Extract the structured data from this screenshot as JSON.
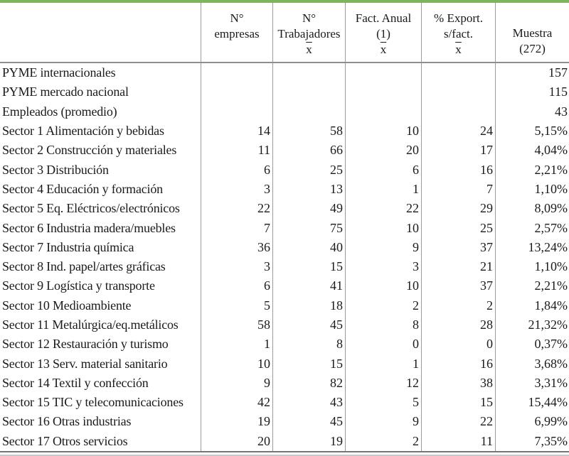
{
  "page": {
    "accent_green": "#7db45c",
    "column_rule_gray": "#9b9b9e",
    "header_rule_gray": "#8e8e90",
    "bottom_rule_gray": "#757577",
    "footer_rule_light": "#c8c8ca",
    "text_color": "#1a1a1c"
  },
  "table": {
    "mean_symbol": "x",
    "header": [
      {
        "lines": [
          "N°",
          "empresas"
        ],
        "mean": false
      },
      {
        "lines": [
          "N°",
          "Trabajadores"
        ],
        "mean": true
      },
      {
        "lines": [
          "Fact. Anual",
          "(1)"
        ],
        "mean": true
      },
      {
        "lines": [
          "% Export.",
          "s/fact."
        ],
        "mean": true
      },
      {
        "lines": [
          "Muestra",
          "(272)"
        ],
        "mean": false
      }
    ],
    "rows": [
      {
        "label": "PYME internacionales",
        "values": [
          "",
          "",
          "",
          "",
          "157"
        ]
      },
      {
        "label": "PYME mercado nacional",
        "values": [
          "",
          "",
          "",
          "",
          "115"
        ]
      },
      {
        "label": "Empleados (promedio)",
        "values": [
          "",
          "",
          "",
          "",
          "43"
        ]
      },
      {
        "label": "Sector 1 Alimentación y bebidas",
        "values": [
          "14",
          "58",
          "10",
          "24",
          "5,15%"
        ]
      },
      {
        "label": "Sector 2 Construcción y materiales",
        "values": [
          "11",
          "66",
          "20",
          "17",
          "4,04%"
        ]
      },
      {
        "label": "Sector 3 Distribución",
        "values": [
          "6",
          "25",
          "6",
          "16",
          "2,21%"
        ]
      },
      {
        "label": "Sector 4 Educación y formación",
        "values": [
          "3",
          "13",
          "1",
          "7",
          "1,10%"
        ]
      },
      {
        "label": "Sector 5 Eq. Eléctricos/electrónicos",
        "values": [
          "22",
          "49",
          "22",
          "29",
          "8,09%"
        ]
      },
      {
        "label": "Sector 6 Industria madera/muebles",
        "values": [
          "7",
          "75",
          "10",
          "25",
          "2,57%"
        ]
      },
      {
        "label": "Sector 7 Industria química",
        "values": [
          "36",
          "40",
          "9",
          "37",
          "13,24%"
        ]
      },
      {
        "label": "Sector 8 Ind. papel/artes gráficas",
        "values": [
          "3",
          "15",
          "3",
          "21",
          "1,10%"
        ]
      },
      {
        "label": "Sector 9 Logística y transporte",
        "values": [
          "6",
          "41",
          "10",
          "37",
          "2,21%"
        ]
      },
      {
        "label": "Sector 10 Medioambiente",
        "values": [
          "5",
          "18",
          "2",
          "2",
          "1,84%"
        ]
      },
      {
        "label": "Sector 11 Metalúrgica/eq.metálicos",
        "values": [
          "58",
          "45",
          "8",
          "28",
          "21,32%"
        ]
      },
      {
        "label": "Sector 12 Restauración y turismo",
        "values": [
          "1",
          "8",
          "0",
          "0",
          "0,37%"
        ]
      },
      {
        "label": "Sector 13 Serv. material sanitario",
        "values": [
          "10",
          "15",
          "1",
          "16",
          "3,68%"
        ]
      },
      {
        "label": "Sector 14 Textil y confección",
        "values": [
          "9",
          "82",
          "12",
          "38",
          "3,31%"
        ]
      },
      {
        "label": "Sector 15 TIC y telecomunicaciones",
        "values": [
          "42",
          "43",
          "5",
          "15",
          "15,44%"
        ]
      },
      {
        "label": "Sector 16 Otras industrias",
        "values": [
          "19",
          "45",
          "9",
          "22",
          "6,99%"
        ]
      },
      {
        "label": "Sector 17 Otros servicios",
        "values": [
          "20",
          "19",
          "2",
          "11",
          "7,35%"
        ]
      }
    ]
  }
}
